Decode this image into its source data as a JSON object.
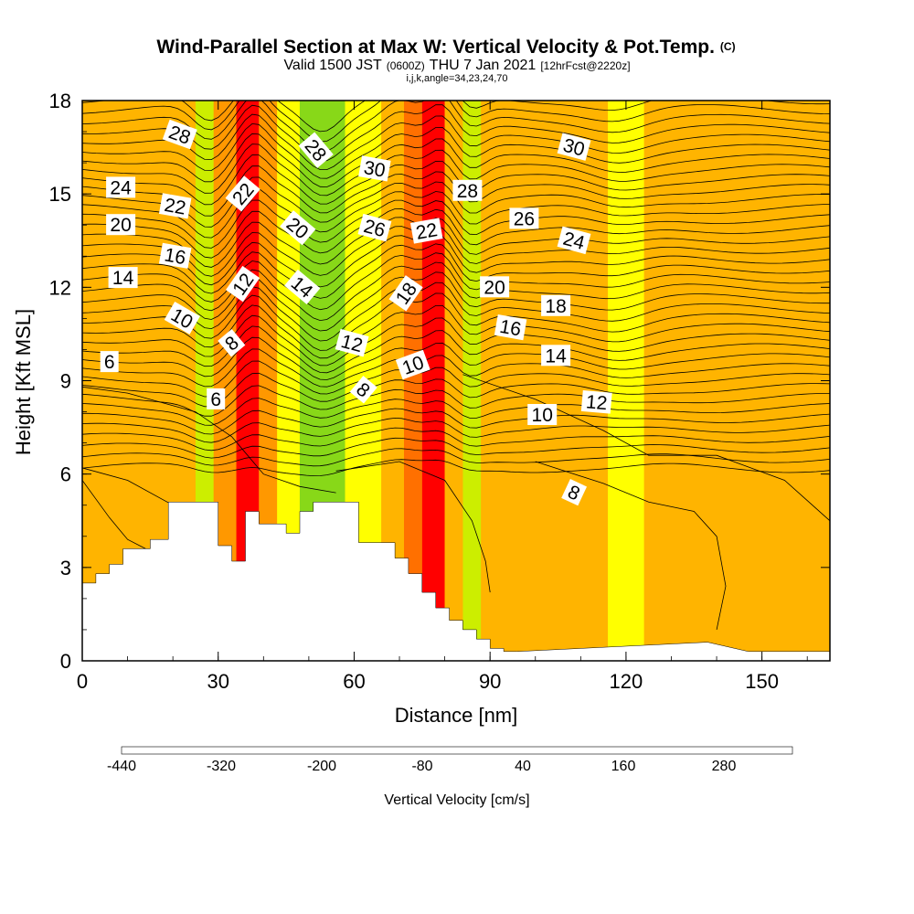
{
  "header": {
    "title": "Wind-Parallel Section at Max W: Vertical Velocity & Pot.Temp.",
    "title_mark": "(C)",
    "valid_prefix": "Valid 1500 JST",
    "valid_utc": "(0600Z)",
    "valid_date": "THU 7 Jan 2021",
    "forecast": "[12hrFcst@2220z]",
    "ijk": "i,j,k,angle=34,23,24,70"
  },
  "chart_data": {
    "type": "heatmap",
    "xlabel": "Distance [nm]",
    "ylabel": "Height [Kft MSL]",
    "xlim": [
      0,
      165
    ],
    "ylim": [
      0,
      18
    ],
    "xticks": [
      0,
      30,
      60,
      90,
      120,
      150
    ],
    "yticks": [
      0,
      3,
      6,
      9,
      12,
      15,
      18
    ],
    "terrain": {
      "x": [
        0,
        3,
        3,
        6,
        6,
        9,
        9,
        15,
        15,
        19,
        19,
        30,
        30,
        33,
        33,
        36,
        36,
        39,
        39,
        45,
        45,
        48,
        48,
        51,
        51,
        61,
        61,
        69,
        69,
        72,
        72,
        75,
        75,
        78,
        78,
        81,
        81,
        84,
        84,
        87,
        87,
        90,
        90,
        93,
        93,
        96,
        96,
        138,
        138,
        147,
        147,
        165
      ],
      "height": [
        2.5,
        2.5,
        2.8,
        2.8,
        3.1,
        3.1,
        3.6,
        3.6,
        3.9,
        3.9,
        5.1,
        5.1,
        3.7,
        3.7,
        3.2,
        3.2,
        4.8,
        4.8,
        4.4,
        4.4,
        4.1,
        4.1,
        4.8,
        4.8,
        5.1,
        5.1,
        3.8,
        3.8,
        3.3,
        3.3,
        2.8,
        2.8,
        2.2,
        2.2,
        1.7,
        1.7,
        1.3,
        1.3,
        1.0,
        1.0,
        0.7,
        0.7,
        0.4,
        0.4,
        0.3,
        0.3,
        0.3,
        0.6,
        0.6,
        0.3,
        0.3,
        0.3
      ]
    },
    "velocity_bands": [
      {
        "x": [
          0,
          25
        ],
        "value": 40
      },
      {
        "x": [
          25,
          29
        ],
        "value": -80
      },
      {
        "x": [
          29,
          34
        ],
        "value": 80
      },
      {
        "x": [
          34,
          39
        ],
        "value": 200
      },
      {
        "x": [
          39,
          43
        ],
        "value": 80
      },
      {
        "x": [
          43,
          48
        ],
        "value": -40
      },
      {
        "x": [
          48,
          58
        ],
        "value": -120
      },
      {
        "x": [
          58,
          66
        ],
        "value": -40
      },
      {
        "x": [
          66,
          71
        ],
        "value": 40
      },
      {
        "x": [
          71,
          75
        ],
        "value": 120
      },
      {
        "x": [
          75,
          80
        ],
        "value": 200
      },
      {
        "x": [
          80,
          84
        ],
        "value": 40
      },
      {
        "x": [
          84,
          88
        ],
        "value": -80
      },
      {
        "x": [
          88,
          100
        ],
        "value": 40
      },
      {
        "x": [
          100,
          106
        ],
        "value": 40
      },
      {
        "x": [
          106,
          116
        ],
        "value": 40
      },
      {
        "x": [
          116,
          124
        ],
        "value": -40
      },
      {
        "x": [
          124,
          165
        ],
        "value": 40
      }
    ],
    "contour_labels": [
      {
        "text": "28",
        "x": 21.5,
        "y": 16.9,
        "rot": 20
      },
      {
        "text": "24",
        "x": 8.5,
        "y": 15.2,
        "rot": 0
      },
      {
        "text": "22",
        "x": 20.5,
        "y": 14.6,
        "rot": 10
      },
      {
        "text": "20",
        "x": 8.5,
        "y": 14.0,
        "rot": 0
      },
      {
        "text": "16",
        "x": 20.5,
        "y": 13.0,
        "rot": 10
      },
      {
        "text": "14",
        "x": 9.0,
        "y": 12.3,
        "rot": 0
      },
      {
        "text": "10",
        "x": 22.0,
        "y": 11.0,
        "rot": 30
      },
      {
        "text": "6",
        "x": 6.0,
        "y": 9.6,
        "rot": 0
      },
      {
        "text": "22",
        "x": 35.5,
        "y": 15.0,
        "rot": -50
      },
      {
        "text": "12",
        "x": 35.5,
        "y": 12.1,
        "rot": -55
      },
      {
        "text": "8",
        "x": 33.0,
        "y": 10.2,
        "rot": -40
      },
      {
        "text": "6",
        "x": 29.5,
        "y": 8.4,
        "rot": 0
      },
      {
        "text": "28",
        "x": 51.5,
        "y": 16.4,
        "rot": 50
      },
      {
        "text": "20",
        "x": 47.5,
        "y": 13.9,
        "rot": 40
      },
      {
        "text": "14",
        "x": 48.5,
        "y": 12.0,
        "rot": 40
      },
      {
        "text": "30",
        "x": 64.5,
        "y": 15.8,
        "rot": 10
      },
      {
        "text": "26",
        "x": 64.5,
        "y": 13.9,
        "rot": 15
      },
      {
        "text": "12",
        "x": 59.5,
        "y": 10.2,
        "rot": 15
      },
      {
        "text": "8",
        "x": 62.0,
        "y": 8.7,
        "rot": 40
      },
      {
        "text": "18",
        "x": 71.5,
        "y": 11.8,
        "rot": -55
      },
      {
        "text": "22",
        "x": 76.0,
        "y": 13.8,
        "rot": -10
      },
      {
        "text": "10",
        "x": 73.0,
        "y": 9.5,
        "rot": -20
      },
      {
        "text": "28",
        "x": 85.0,
        "y": 15.1,
        "rot": 0
      },
      {
        "text": "26",
        "x": 97.5,
        "y": 14.2,
        "rot": 0
      },
      {
        "text": "20",
        "x": 91.0,
        "y": 12.0,
        "rot": 0
      },
      {
        "text": "16",
        "x": 94.5,
        "y": 10.7,
        "rot": 10
      },
      {
        "text": "30",
        "x": 108.5,
        "y": 16.5,
        "rot": 15
      },
      {
        "text": "24",
        "x": 108.5,
        "y": 13.5,
        "rot": 15
      },
      {
        "text": "18",
        "x": 104.5,
        "y": 11.4,
        "rot": 0
      },
      {
        "text": "14",
        "x": 104.5,
        "y": 9.8,
        "rot": 0
      },
      {
        "text": "12",
        "x": 113.5,
        "y": 8.3,
        "rot": 5
      },
      {
        "text": "10",
        "x": 101.5,
        "y": 7.9,
        "rot": 0
      },
      {
        "text": "8",
        "x": 108.5,
        "y": 5.4,
        "rot": 25
      }
    ],
    "colorbar": {
      "title": "Vertical Velocity [cm/s]",
      "labels": [
        "-440",
        "-320",
        "-200",
        "-80",
        "40",
        "160",
        "280"
      ],
      "colors": [
        "#0000ff",
        "#0a4bff",
        "#1e90ff",
        "#00bfff",
        "#00e0e0",
        "#00d090",
        "#10c050",
        "#22b022",
        "#44c020",
        "#88d818",
        "#ccee00",
        "#ffff00",
        "#ffd000",
        "#ffb400",
        "#ff9800",
        "#ff7000",
        "#ff4000",
        "#ff0000",
        "#d00020",
        "#a00060",
        "#800080",
        "#500090"
      ]
    }
  }
}
